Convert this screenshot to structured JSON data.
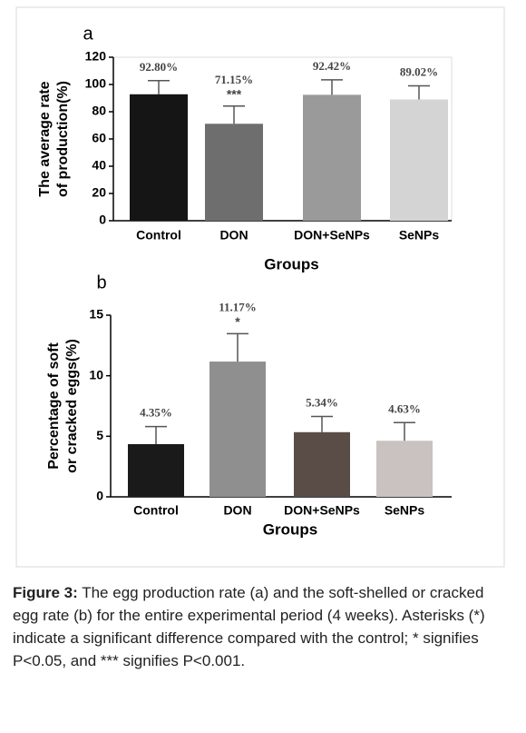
{
  "chart_data": [
    {
      "type": "bar",
      "panel": "a",
      "categories": [
        "Control",
        "DON",
        "DON+SeNPs",
        "SeNPs"
      ],
      "values": [
        92.8,
        71.15,
        92.42,
        89.02
      ],
      "value_labels": [
        "92.80%",
        "71.15%",
        "92.42%",
        "89.02%"
      ],
      "errors": [
        10,
        13,
        11,
        10
      ],
      "colors": [
        "#151515",
        "#6e6e6e",
        "#9a9a9a",
        "#d4d4d4"
      ],
      "annotations": [
        null,
        "***",
        null,
        null
      ],
      "ylabel": [
        "The average rate",
        "of production(%)"
      ],
      "xlabel": "Groups",
      "ylim": [
        0,
        120
      ],
      "yticks": [
        0,
        20,
        40,
        60,
        80,
        100,
        120
      ]
    },
    {
      "type": "bar",
      "panel": "b",
      "categories": [
        "Control",
        "DON",
        "DON+SeNPs",
        "SeNPs"
      ],
      "values": [
        4.35,
        11.17,
        5.34,
        4.63
      ],
      "value_labels": [
        "4.35%",
        "11.17%",
        "5.34%",
        "4.63%"
      ],
      "errors": [
        1.45,
        2.3,
        1.3,
        1.5
      ],
      "colors": [
        "#1a1a1a",
        "#8f8f8f",
        "#5a4d48",
        "#c9c2c0"
      ],
      "annotations": [
        null,
        "*",
        null,
        null
      ],
      "ylabel": [
        "Percentage of soft",
        "or cracked eggs(%)"
      ],
      "xlabel": "Groups",
      "ylim": [
        0,
        15
      ],
      "yticks": [
        0,
        5,
        10,
        15
      ]
    }
  ],
  "caption_label": "Figure 3:",
  "caption": "The egg production rate (a) and the soft-shelled or cracked egg rate (b) for the entire experimental period (4 weeks). Asterisks (*) indicate a significant difference compared with the control; * signifies P<0.05, and *** signifies P<0.001."
}
